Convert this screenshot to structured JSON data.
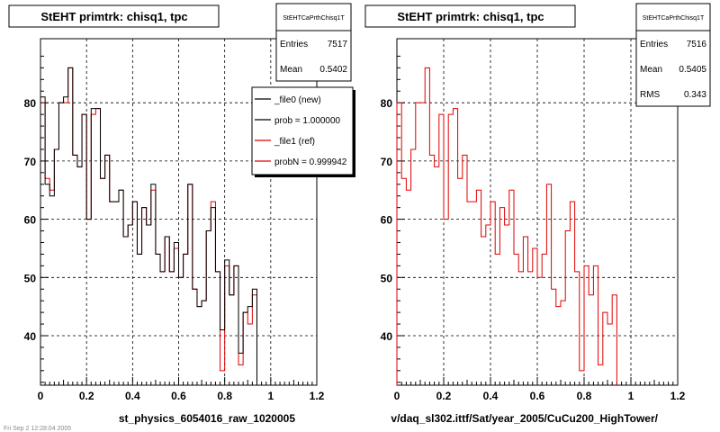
{
  "colors": {
    "new": "#000000",
    "ref": "#e00000",
    "background": "#ffffff",
    "grid": "#000000"
  },
  "footer_stamp": "Fri Sep 2 12:28:04 2005",
  "chart_data": [
    {
      "type": "line",
      "drawstyle": "steps-post",
      "title": "StEHT primtrk: chisq1, tpc",
      "xlabel": "st_physics_6054016_raw_1020005",
      "ylabel": "",
      "xlim": [
        0,
        1.2
      ],
      "ylim": [
        31.5,
        91
      ],
      "grid": true,
      "xticks": [
        "0",
        "0.2",
        "0.4",
        "0.6",
        "0.8",
        "1",
        "1.2"
      ],
      "yticks": [
        "40",
        "50",
        "60",
        "70",
        "80"
      ],
      "bin_width": 0.02,
      "stats": {
        "title": "StEHTCaPrthChisq1T",
        "rows": [
          {
            "label": "Entries",
            "value": "7517"
          },
          {
            "label": "Mean",
            "value": "0.5402"
          }
        ]
      },
      "legend": {
        "position": "top-right",
        "entries": [
          {
            "label": "_file0 (new)",
            "color": "#000000"
          },
          {
            "label": "prob = 1.000000",
            "color": "#000000"
          },
          {
            "label": "_file1 (ref)",
            "color": "#e00000"
          },
          {
            "label": "probN = 0.999942",
            "color": "#e00000"
          }
        ]
      },
      "series": [
        {
          "name": "_file0 (new)",
          "color": "#000000",
          "values": [
            81,
            66,
            64,
            72,
            80,
            81,
            86,
            71,
            69,
            78,
            60,
            79,
            79,
            67,
            71,
            63,
            63,
            65,
            57,
            59,
            63,
            54,
            62,
            59,
            66,
            54,
            51,
            57,
            51,
            56,
            50,
            54,
            66,
            48,
            45,
            46,
            58,
            62,
            51,
            41,
            53,
            47,
            52,
            37,
            44,
            45,
            48
          ]
        },
        {
          "name": "_file1 (ref)",
          "color": "#e00000",
          "values": [
            80,
            67,
            65,
            72,
            80,
            80,
            86,
            71,
            69,
            78,
            60,
            78,
            79,
            67,
            71,
            63,
            63,
            65,
            57,
            59,
            63,
            54,
            62,
            59,
            65,
            54,
            51,
            57,
            51,
            55,
            50,
            54,
            66,
            48,
            45,
            46,
            58,
            63,
            51,
            34,
            52,
            47,
            52,
            35,
            44,
            42,
            47
          ]
        }
      ]
    },
    {
      "type": "line",
      "drawstyle": "steps-post",
      "title": "StEHT primtrk: chisq1, tpc",
      "xlabel": "v/daq_sl302.ittf/Sat/year_2005/CuCu200_HighTower/",
      "ylabel": "",
      "xlim": [
        0,
        1.2
      ],
      "ylim": [
        31.5,
        91
      ],
      "grid": true,
      "xticks": [
        "0",
        "0.2",
        "0.4",
        "0.6",
        "0.8",
        "1",
        "1.2"
      ],
      "yticks": [
        "40",
        "50",
        "60",
        "70",
        "80"
      ],
      "bin_width": 0.02,
      "stats": {
        "title": "StEHTCaPrthChisq1T",
        "rows": [
          {
            "label": "Entries",
            "value": "7516"
          },
          {
            "label": "Mean",
            "value": "0.5405"
          },
          {
            "label": "RMS",
            "value": "0.343"
          }
        ]
      },
      "series": [
        {
          "name": "",
          "color": "#e00000",
          "values": [
            80,
            67,
            65,
            72,
            80,
            80,
            86,
            71,
            69,
            78,
            60,
            78,
            79,
            67,
            71,
            63,
            63,
            65,
            57,
            59,
            63,
            54,
            62,
            59,
            65,
            54,
            51,
            57,
            51,
            55,
            50,
            54,
            66,
            48,
            45,
            46,
            58,
            63,
            51,
            34,
            52,
            47,
            52,
            35,
            44,
            42,
            47
          ]
        }
      ]
    }
  ]
}
